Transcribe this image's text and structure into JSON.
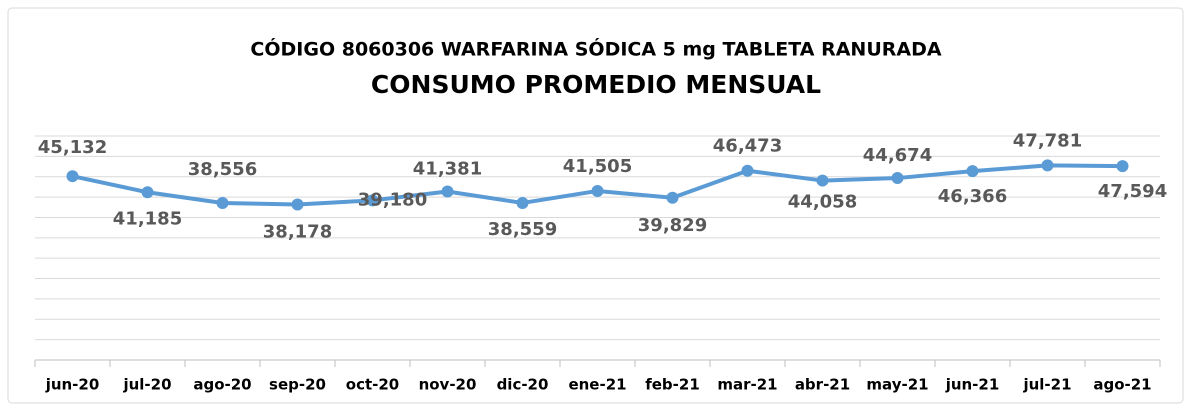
{
  "chart_data": {
    "type": "line",
    "title": "CÓDIGO 8060306 WARFARINA SÓDICA 5 mg TABLETA RANURADA",
    "subtitle": "CONSUMO PROMEDIO MENSUAL",
    "categories": [
      "jun-20",
      "jul-20",
      "ago-20",
      "sep-20",
      "oct-20",
      "nov-20",
      "dic-20",
      "ene-21",
      "feb-21",
      "mar-21",
      "abr-21",
      "may-21",
      "jun-21",
      "jul-21",
      "ago-21"
    ],
    "values": [
      45132,
      41185,
      38556,
      38178,
      39180,
      41381,
      38559,
      41505,
      39829,
      46473,
      44058,
      44674,
      46366,
      47781,
      47594
    ],
    "value_labels": [
      "45,132",
      "41,185",
      "38,556",
      "38,178",
      "39,180",
      "41,381",
      "38,559",
      "41,505",
      "39,829",
      "46,473",
      "44,058",
      "44,674",
      "46,366",
      "47,781",
      "47,594"
    ],
    "color": "#5b9bd5",
    "ylim": [
      0,
      55000
    ],
    "yticks": [
      0,
      5000,
      10000,
      15000,
      20000,
      25000,
      30000,
      35000,
      40000,
      45000,
      50000,
      55000
    ],
    "grid": true
  }
}
